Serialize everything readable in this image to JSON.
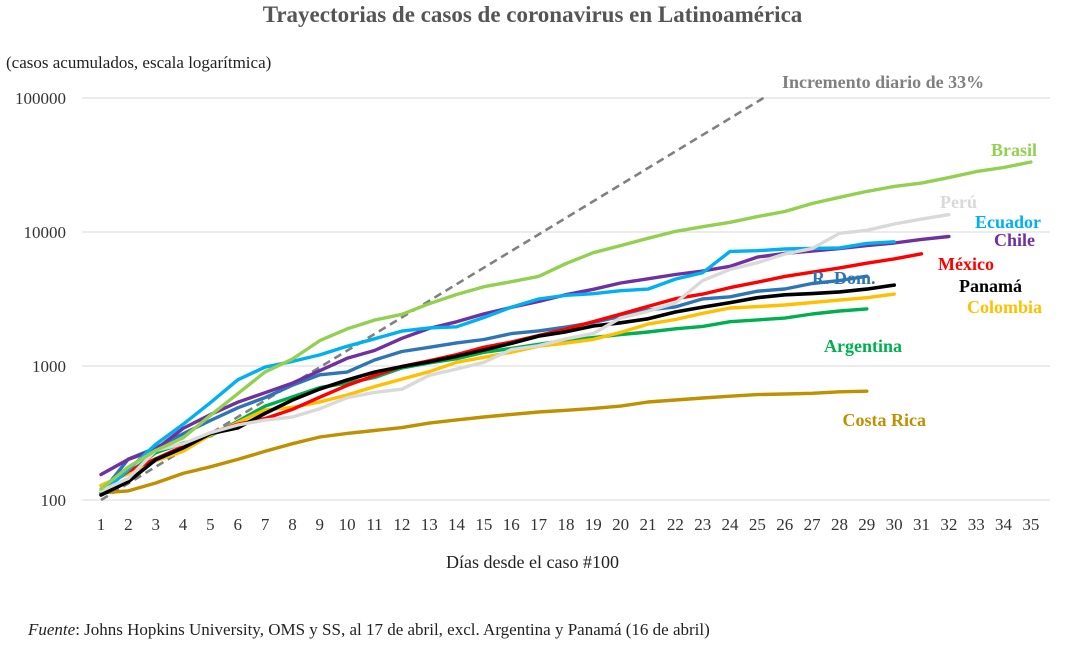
{
  "chart_data": {
    "type": "line",
    "title": "Trayectorias de casos de coronavirus en Latinoamérica",
    "ylabel": "(casos acumulados, escala logarítmica)",
    "xlabel": "Días desde el caso #100",
    "yscale": "log",
    "ylim": [
      100,
      100000
    ],
    "yticks": [
      "100",
      "1000",
      "10000",
      "100000"
    ],
    "xticks": [
      "1",
      "2",
      "3",
      "4",
      "5",
      "6",
      "7",
      "8",
      "9",
      "10",
      "11",
      "12",
      "13",
      "14",
      "15",
      "16",
      "17",
      "18",
      "19",
      "20",
      "21",
      "22",
      "23",
      "24",
      "25",
      "26",
      "27",
      "28",
      "29",
      "30",
      "31",
      "32",
      "33",
      "34",
      "35"
    ],
    "grid": true,
    "reference": {
      "name": "Incremento diario de 33%",
      "start_day": 1,
      "start_value": 100,
      "daily_growth": 0.33,
      "color": "#808080"
    },
    "series": [
      {
        "name": "Brasil",
        "color": "#92d050",
        "values": [
          121,
          176,
          234,
          291,
          428,
          621,
          904,
          1128,
          1546,
          1891,
          2201,
          2433,
          2915,
          3417,
          3904,
          4256,
          4661,
          5812,
          7010,
          7920,
          8980,
          10110,
          10960,
          11820,
          13030,
          14220,
          16310,
          18160,
          20090,
          21900,
          23180,
          25470,
          28240,
          30300,
          33300
        ]
      },
      {
        "name": "Perú",
        "color": "#d9d9d9",
        "values": [
          117,
          145,
          234,
          263,
          318,
          363,
          395,
          416,
          480,
          580,
          635,
          671,
          852,
          950,
          1065,
          1323,
          1414,
          1595,
          1746,
          2281,
          2561,
          2954,
          4342,
          5256,
          5897,
          6848,
          7519,
          9784,
          10303,
          11475,
          12491,
          13489
        ]
      },
      {
        "name": "Ecuador",
        "color": "#00b0f0",
        "values": [
          111,
          168,
          260,
          367,
          532,
          789,
          981,
          1082,
          1211,
          1403,
          1595,
          1823,
          1924,
          1962,
          2302,
          2748,
          3163,
          3368,
          3465,
          3646,
          3747,
          4450,
          4965,
          7161,
          7257,
          7466,
          7529,
          7603,
          8225,
          8450
        ]
      },
      {
        "name": "Chile",
        "color": "#7030a0",
        "values": [
          155,
          201,
          238,
          342,
          434,
          537,
          632,
          746,
          922,
          1142,
          1306,
          1610,
          1909,
          2139,
          2449,
          2738,
          3031,
          3404,
          3737,
          4161,
          4471,
          4815,
          5116,
          5546,
          6501,
          6927,
          7213,
          7525,
          7917,
          8273,
          8807,
          9252
        ]
      },
      {
        "name": "México",
        "color": "#ff0000",
        "values": [
          118,
          164,
          203,
          251,
          316,
          367,
          405,
          475,
          585,
          717,
          848,
          993,
          1094,
          1215,
          1378,
          1510,
          1688,
          1890,
          2143,
          2439,
          2785,
          3181,
          3441,
          3844,
          4219,
          4661,
          5014,
          5399,
          5847,
          6297,
          6875
        ]
      },
      {
        "name": "R. Dom.",
        "color": "#2e75b6",
        "values": [
          112,
          202,
          245,
          312,
          392,
          488,
          581,
          719,
          859,
          901,
          1109,
          1284,
          1380,
          1488,
          1578,
          1745,
          1828,
          1956,
          2111,
          2349,
          2620,
          2759,
          3167,
          3286,
          3614,
          3755,
          4126,
          4335,
          4680
        ]
      },
      {
        "name": "Panamá",
        "color": "#000000",
        "values": [
          109,
          137,
          200,
          245,
          313,
          345,
          443,
          558,
          674,
          786,
          901,
          989,
          1075,
          1181,
          1317,
          1475,
          1673,
          1801,
          1988,
          2100,
          2249,
          2528,
          2752,
          2974,
          3234,
          3400,
          3472,
          3574,
          3751,
          4016
        ]
      },
      {
        "name": "Colombia",
        "color": "#ffc000",
        "values": [
          128,
          158,
          196,
          231,
          306,
          378,
          470,
          491,
          539,
          608,
          702,
          798,
          906,
          1065,
          1161,
          1267,
          1406,
          1485,
          1579,
          1780,
          2054,
          2223,
          2473,
          2709,
          2776,
          2852,
          2979,
          3105,
          3233,
          3439
        ]
      },
      {
        "name": "Argentina",
        "color": "#00b050",
        "values": [
          128,
          158,
          225,
          266,
          301,
          387,
          502,
          589,
          690,
          745,
          820,
          966,
          1054,
          1133,
          1265,
          1353,
          1451,
          1554,
          1628,
          1715,
          1795,
          1894,
          1975,
          2142,
          2208,
          2277,
          2443,
          2571,
          2669
        ]
      },
      {
        "name": "Costa Rica",
        "color": "#bf9000",
        "values": [
          113,
          117,
          134,
          158,
          177,
          201,
          231,
          263,
          295,
          314,
          330,
          347,
          375,
          396,
          416,
          435,
          454,
          467,
          483,
          502,
          539,
          558,
          577,
          595,
          612,
          618,
          626,
          642,
          649
        ]
      }
    ]
  },
  "source": {
    "label": "Fuente",
    "text": ": Johns Hopkins University, OMS y SS, al 17 de abril, excl. Argentina y Panamá (16 de abril)"
  }
}
